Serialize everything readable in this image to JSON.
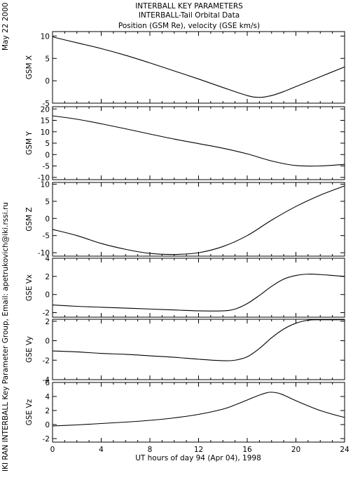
{
  "header": {
    "line1": "INTERBALL KEY PARAMETERS",
    "line2": "INTERBALL-Tail Orbital Data",
    "line3": "Position (GSM Re), velocity (GSE km/s)"
  },
  "side_date": "May 22 2000",
  "side_credit": "IKI RAN INTERBALL Key Parameter Group, Email: apetrukovich@iki.rssi.ru",
  "chart_data": [
    {
      "type": "line",
      "ylabel": "GSM X",
      "ylim": [
        -5,
        11
      ],
      "yticks": [
        -5,
        0,
        5,
        10
      ],
      "x": [
        0,
        2,
        4,
        6,
        8,
        10,
        12,
        14,
        16,
        17,
        18,
        19,
        20,
        22,
        24
      ],
      "y": [
        9.8,
        8.5,
        7.2,
        5.7,
        4.0,
        2.2,
        0.4,
        -1.5,
        -3.3,
        -3.7,
        -3.3,
        -2.4,
        -1.3,
        0.9,
        3.1
      ]
    },
    {
      "type": "line",
      "ylabel": "GSM Y",
      "ylim": [
        -11,
        21
      ],
      "yticks": [
        -10,
        -5,
        0,
        5,
        10,
        15,
        20
      ],
      "x": [
        0,
        2,
        4,
        6,
        8,
        10,
        12,
        14,
        16,
        18,
        20,
        22,
        24
      ],
      "y": [
        17.0,
        15.5,
        13.5,
        11.3,
        9.0,
        6.8,
        4.8,
        2.8,
        0.3,
        -2.8,
        -4.8,
        -5.0,
        -4.3
      ]
    },
    {
      "type": "line",
      "ylabel": "GSM Z",
      "ylim": [
        -11,
        10.5
      ],
      "yticks": [
        -10,
        -5,
        0,
        5,
        10
      ],
      "x": [
        0,
        2,
        4,
        6,
        8,
        10,
        12,
        14,
        16,
        18,
        20,
        22,
        24
      ],
      "y": [
        -3.2,
        -5.0,
        -7.3,
        -9.0,
        -10.2,
        -10.5,
        -10.0,
        -8.2,
        -5.0,
        -0.5,
        3.5,
        6.8,
        9.5
      ]
    },
    {
      "type": "line",
      "ylabel": "GSE Vx",
      "ylim": [
        -2.5,
        4
      ],
      "yticks": [
        -2,
        0,
        2,
        4
      ],
      "x": [
        0,
        2,
        4,
        6,
        8,
        10,
        12,
        14,
        15,
        16,
        17,
        18,
        19,
        20,
        21,
        22,
        23,
        24
      ],
      "y": [
        -1.15,
        -1.3,
        -1.4,
        -1.5,
        -1.6,
        -1.7,
        -1.8,
        -1.8,
        -1.6,
        -1.0,
        -0.1,
        0.9,
        1.7,
        2.1,
        2.25,
        2.2,
        2.1,
        2.0
      ]
    },
    {
      "type": "line",
      "ylabel": "GSE Vy",
      "ylim": [
        -4,
        2.2
      ],
      "yticks": [
        -4,
        -2,
        0,
        2
      ],
      "x": [
        0,
        2,
        4,
        6,
        8,
        10,
        12,
        14,
        15,
        16,
        17,
        18,
        19,
        20,
        21,
        22,
        24
      ],
      "y": [
        -1.05,
        -1.15,
        -1.3,
        -1.4,
        -1.55,
        -1.7,
        -1.9,
        -2.05,
        -2.0,
        -1.65,
        -0.8,
        0.3,
        1.2,
        1.8,
        2.1,
        2.15,
        2.15
      ]
    },
    {
      "type": "line",
      "ylabel": "GSE Vz",
      "ylim": [
        -2.5,
        6
      ],
      "yticks": [
        -2,
        0,
        2,
        4,
        6
      ],
      "x": [
        0,
        2,
        4,
        6,
        8,
        10,
        12,
        14,
        15,
        16,
        17,
        17.8,
        18.5,
        19,
        20,
        22,
        24
      ],
      "y": [
        -0.2,
        -0.05,
        0.15,
        0.35,
        0.6,
        0.95,
        1.45,
        2.2,
        2.8,
        3.5,
        4.2,
        4.6,
        4.5,
        4.2,
        3.4,
        2.0,
        1.0
      ]
    }
  ],
  "x_axis": {
    "xlim": [
      0,
      24
    ],
    "ticks": [
      0,
      4,
      8,
      12,
      16,
      20,
      24
    ],
    "label": "UT hours of day  94 (Apr 04), 1998"
  }
}
